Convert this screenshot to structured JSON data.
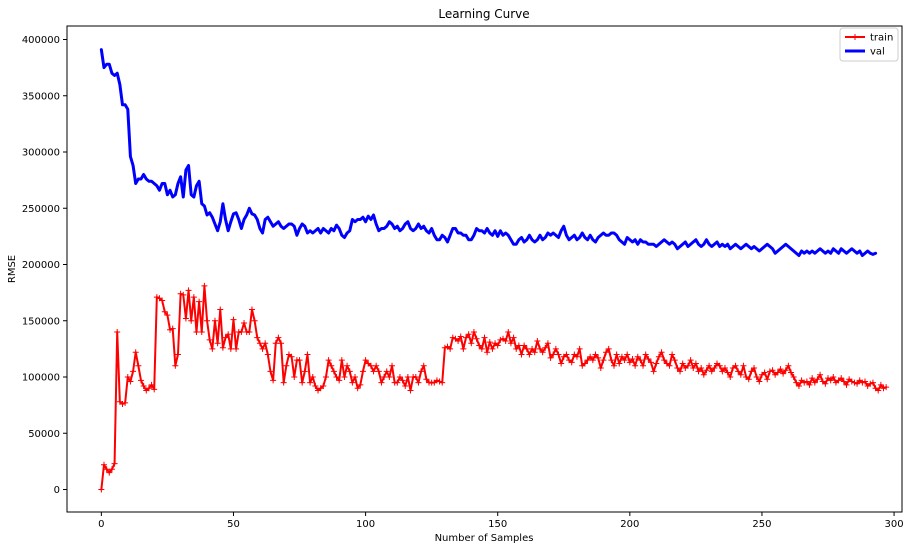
{
  "chart_data": {
    "type": "line",
    "title": "Learning Curve",
    "xlabel": "Number of Samples",
    "ylabel": "RMSE",
    "xlim": [
      -13,
      303
    ],
    "ylim": [
      -20000,
      412000
    ],
    "xticks": [
      0,
      50,
      100,
      150,
      200,
      250,
      300
    ],
    "yticks": [
      0,
      50000,
      100000,
      150000,
      200000,
      250000,
      300000,
      350000,
      400000
    ],
    "grid": false,
    "legend_position": "top-right",
    "series": [
      {
        "name": "train",
        "color": "#ff0000",
        "marker": "+",
        "x_start": 0,
        "values": [
          0,
          22000,
          18000,
          15000,
          18000,
          23000,
          140000,
          78000,
          76000,
          77000,
          100000,
          96000,
          105000,
          122000,
          110000,
          97000,
          92000,
          88000,
          90000,
          93000,
          89000,
          171000,
          170000,
          168000,
          158000,
          155000,
          142000,
          143000,
          110000,
          120000,
          174000,
          173000,
          152000,
          177000,
          150000,
          171000,
          140000,
          167000,
          140000,
          181000,
          150000,
          133000,
          125000,
          150000,
          130000,
          160000,
          126000,
          135000,
          138000,
          125000,
          151000,
          125000,
          140000,
          140000,
          148000,
          140000,
          140000,
          160000,
          150000,
          135000,
          130000,
          125000,
          130000,
          120000,
          105000,
          97000,
          130000,
          135000,
          130000,
          95000,
          110000,
          120000,
          118000,
          100000,
          115000,
          115000,
          95000,
          105000,
          120000,
          95000,
          100000,
          92000,
          88000,
          90000,
          92000,
          100000,
          115000,
          110000,
          105000,
          100000,
          97000,
          115000,
          100000,
          110000,
          105000,
          95000,
          100000,
          90000,
          93000,
          105000,
          115000,
          112000,
          110000,
          105000,
          110000,
          105000,
          95000,
          100000,
          105000,
          100000,
          110000,
          95000,
          95000,
          100000,
          97000,
          92000,
          100000,
          88000,
          100000,
          100000,
          95000,
          105000,
          110000,
          98000,
          95000,
          95000,
          95000,
          97000,
          96000,
          95000,
          126000,
          127000,
          125000,
          135000,
          134000,
          132000,
          136000,
          125000,
          135000,
          138000,
          130000,
          140000,
          134000,
          128000,
          125000,
          135000,
          122000,
          131000,
          125000,
          130000,
          128000,
          133000,
          134000,
          132000,
          140000,
          130000,
          135000,
          125000,
          128000,
          120000,
          128000,
          125000,
          120000,
          125000,
          122000,
          132000,
          125000,
          122000,
          126000,
          130000,
          117000,
          120000,
          125000,
          120000,
          112000,
          118000,
          120000,
          115000,
          113000,
          120000,
          118000,
          125000,
          110000,
          112000,
          115000,
          118000,
          115000,
          120000,
          117000,
          108000,
          115000,
          122000,
          125000,
          115000,
          110000,
          120000,
          112000,
          118000,
          115000,
          120000,
          113000,
          116000,
          110000,
          118000,
          115000,
          110000,
          120000,
          116000,
          113000,
          105000,
          112000,
          118000,
          122000,
          115000,
          112000,
          110000,
          120000,
          115000,
          108000,
          105000,
          112000,
          108000,
          110000,
          115000,
          108000,
          112000,
          105000,
          108000,
          102000,
          106000,
          110000,
          105000,
          108000,
          112000,
          110000,
          105000,
          108000,
          104000,
          100000,
          108000,
          110000,
          105000,
          102000,
          110000,
          100000,
          98000,
          105000,
          108000,
          100000,
          96000,
          102000,
          104000,
          98000,
          105000,
          106000,
          102000,
          104000,
          107000,
          103000,
          106000,
          110000,
          104000,
          100000,
          95000,
          92000,
          97000,
          95000,
          96000,
          93000,
          99000,
          95000,
          98000,
          102000,
          96000,
          94000,
          99000,
          97000,
          100000,
          95000,
          97000,
          99000,
          96000,
          93000,
          98000,
          96000,
          95000,
          94000,
          97000,
          95000,
          96000,
          92000,
          94000,
          95000,
          90000,
          88000,
          93000,
          90000,
          91000
        ]
      },
      {
        "name": "val",
        "color": "#0000ff",
        "marker": "none",
        "x_start": 0,
        "values": [
          391000,
          375000,
          378000,
          378000,
          370000,
          368000,
          370000,
          360000,
          342000,
          342000,
          338000,
          296000,
          288000,
          272000,
          276000,
          276000,
          280000,
          276000,
          274000,
          274000,
          272000,
          270000,
          266000,
          272000,
          272000,
          262000,
          266000,
          260000,
          262000,
          272000,
          278000,
          260000,
          284000,
          288000,
          262000,
          260000,
          270000,
          274000,
          254000,
          252000,
          244000,
          246000,
          242000,
          236000,
          230000,
          238000,
          254000,
          240000,
          230000,
          238000,
          245000,
          246000,
          240000,
          232000,
          240000,
          244000,
          250000,
          245000,
          244000,
          240000,
          232000,
          228000,
          240000,
          242000,
          238000,
          234000,
          236000,
          238000,
          234000,
          232000,
          234000,
          236000,
          236000,
          234000,
          226000,
          232000,
          236000,
          234000,
          228000,
          230000,
          228000,
          230000,
          232000,
          228000,
          232000,
          230000,
          228000,
          232000,
          230000,
          235000,
          232000,
          226000,
          224000,
          228000,
          230000,
          240000,
          238000,
          240000,
          240000,
          242000,
          238000,
          243000,
          240000,
          244000,
          236000,
          230000,
          232000,
          232000,
          234000,
          238000,
          236000,
          232000,
          234000,
          230000,
          232000,
          236000,
          238000,
          232000,
          230000,
          232000,
          236000,
          232000,
          234000,
          230000,
          228000,
          232000,
          226000,
          222000,
          222000,
          226000,
          224000,
          220000,
          226000,
          232000,
          232000,
          228000,
          228000,
          226000,
          226000,
          222000,
          222000,
          226000,
          232000,
          230000,
          230000,
          228000,
          232000,
          228000,
          226000,
          230000,
          225000,
          230000,
          226000,
          228000,
          226000,
          222000,
          218000,
          218000,
          222000,
          224000,
          220000,
          222000,
          226000,
          222000,
          220000,
          222000,
          226000,
          222000,
          224000,
          228000,
          226000,
          228000,
          226000,
          224000,
          230000,
          234000,
          226000,
          222000,
          224000,
          226000,
          222000,
          224000,
          228000,
          224000,
          222000,
          226000,
          222000,
          220000,
          224000,
          226000,
          228000,
          226000,
          226000,
          228000,
          228000,
          226000,
          222000,
          220000,
          218000,
          224000,
          222000,
          220000,
          222000,
          218000,
          222000,
          220000,
          220000,
          218000,
          218000,
          218000,
          216000,
          218000,
          220000,
          222000,
          220000,
          218000,
          220000,
          218000,
          214000,
          216000,
          218000,
          220000,
          216000,
          218000,
          220000,
          222000,
          218000,
          216000,
          218000,
          222000,
          218000,
          216000,
          218000,
          220000,
          216000,
          218000,
          216000,
          218000,
          214000,
          216000,
          218000,
          216000,
          214000,
          216000,
          218000,
          216000,
          214000,
          216000,
          214000,
          212000,
          214000,
          216000,
          218000,
          216000,
          214000,
          210000,
          212000,
          214000,
          216000,
          218000,
          216000,
          214000,
          212000,
          210000,
          208000,
          212000,
          210000,
          212000,
          210000,
          212000,
          210000,
          212000,
          214000,
          212000,
          210000,
          212000,
          210000,
          214000,
          212000,
          210000,
          214000,
          212000,
          210000,
          212000,
          214000,
          212000,
          210000,
          212000,
          208000,
          210000,
          212000,
          210000,
          209000,
          210000
        ]
      }
    ]
  }
}
